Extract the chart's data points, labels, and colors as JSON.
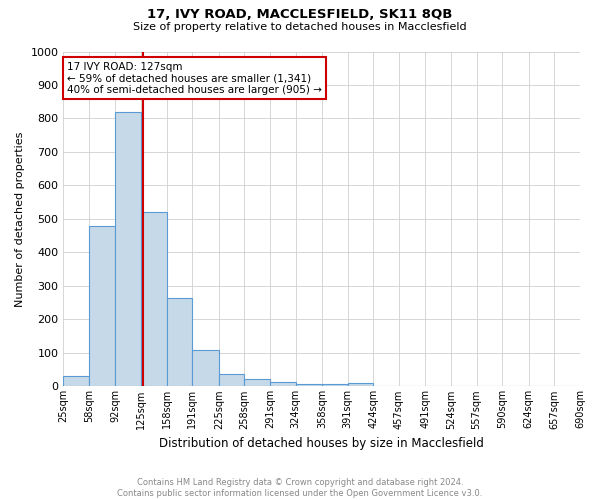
{
  "title1": "17, IVY ROAD, MACCLESFIELD, SK11 8QB",
  "title2": "Size of property relative to detached houses in Macclesfield",
  "xlabel": "Distribution of detached houses by size in Macclesfield",
  "ylabel": "Number of detached properties",
  "footnote": "Contains HM Land Registry data © Crown copyright and database right 2024.\nContains public sector information licensed under the Open Government Licence v3.0.",
  "bar_left_edges": [
    25,
    58,
    92,
    125,
    158,
    191,
    225,
    258,
    291,
    324,
    358,
    391,
    424,
    457,
    491,
    524,
    557,
    590,
    624,
    657
  ],
  "bar_right_edges": [
    58,
    92,
    125,
    158,
    191,
    225,
    258,
    291,
    324,
    358,
    391,
    424,
    457,
    491,
    524,
    557,
    590,
    624,
    657,
    690
  ],
  "bar_heights": [
    30,
    480,
    820,
    520,
    265,
    110,
    37,
    22,
    12,
    8,
    8,
    10,
    0,
    0,
    0,
    0,
    0,
    0,
    0,
    0
  ],
  "bar_color": "#c6d9e8",
  "bar_edge_color": "#5b9bd5",
  "property_size": 127,
  "red_line_color": "#cc0000",
  "annotation_text": "17 IVY ROAD: 127sqm\n← 59% of detached houses are smaller (1,341)\n40% of semi-detached houses are larger (905) →",
  "annotation_box_color": "#ffffff",
  "annotation_box_edge_color": "#cc0000",
  "ylim": [
    0,
    1000
  ],
  "xlim": [
    25,
    690
  ],
  "tick_positions": [
    25,
    58,
    92,
    125,
    158,
    191,
    225,
    258,
    291,
    324,
    358,
    391,
    424,
    457,
    491,
    524,
    557,
    590,
    624,
    657,
    690
  ],
  "tick_labels": [
    "25sqm",
    "58sqm",
    "92sqm",
    "125sqm",
    "158sqm",
    "191sqm",
    "225sqm",
    "258sqm",
    "291sqm",
    "324sqm",
    "358sqm",
    "391sqm",
    "424sqm",
    "457sqm",
    "491sqm",
    "524sqm",
    "557sqm",
    "590sqm",
    "624sqm",
    "657sqm",
    "690sqm"
  ],
  "background_color": "#ffffff",
  "grid_color": "#d0d0d0",
  "title1_fontsize": 9.5,
  "title2_fontsize": 8.0,
  "ylabel_fontsize": 8.0,
  "xlabel_fontsize": 8.5,
  "tick_fontsize": 7.0,
  "annotation_fontsize": 7.5,
  "footnote_fontsize": 6.0,
  "footnote_color": "#888888"
}
